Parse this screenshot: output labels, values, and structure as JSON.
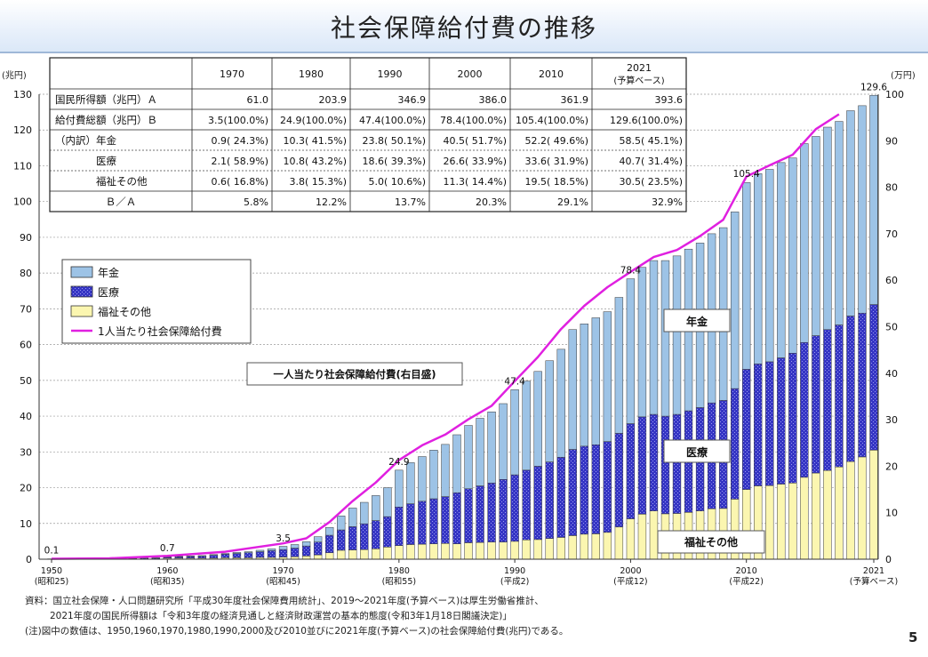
{
  "title": "社会保障給付費の推移",
  "page_number": "5",
  "left_axis_unit": "(兆円)",
  "right_axis_unit": "(万円)",
  "table": {
    "years": [
      "1970",
      "1980",
      "1990",
      "2000",
      "2010",
      "2021"
    ],
    "last_year_note": "(予算ベース)",
    "rows": [
      {
        "label": "国民所得額（兆円）Ａ",
        "values": [
          "61.0",
          "203.9",
          "346.9",
          "386.0",
          "361.9",
          "393.6"
        ]
      },
      {
        "label": "給付費総額（兆円）Ｂ",
        "values": [
          "3.5(100.0%)",
          "24.9(100.0%)",
          "47.4(100.0%)",
          "78.4(100.0%)",
          "105.4(100.0%)",
          "129.6(100.0%)"
        ]
      },
      {
        "label": "（内訳）年金",
        "values": [
          "0.9( 24.3%)",
          "10.3( 41.5%)",
          "23.8( 50.1%)",
          "40.5( 51.7%)",
          "52.2( 49.6%)",
          "58.5( 45.1%)"
        ]
      },
      {
        "label": "医療",
        "values": [
          "2.1( 58.9%)",
          "10.8( 43.2%)",
          "18.6( 39.3%)",
          "26.6( 33.9%)",
          "33.6( 31.9%)",
          "40.7( 31.4%)"
        ]
      },
      {
        "label": "福祉その他",
        "values": [
          "0.6( 16.8%)",
          "3.8( 15.3%)",
          "5.0( 10.6%)",
          "11.3( 14.4%)",
          "19.5( 18.5%)",
          "30.5( 23.5%)"
        ]
      },
      {
        "label": "Ｂ／Ａ",
        "values": [
          "5.8%",
          "12.2%",
          "13.7%",
          "20.3%",
          "29.1%",
          "32.9%"
        ]
      }
    ]
  },
  "legend": [
    "年金",
    "医療",
    "福祉その他",
    "1人当たり社会保障給付費"
  ],
  "annotations": {
    "callout": "一人当たり社会保障給付費(右目盛)",
    "pension": "年金",
    "medical": "医療",
    "welfare": "福祉その他"
  },
  "x_tick_labels": [
    {
      "year": 1950,
      "label": "1950",
      "sub": "(昭和25)"
    },
    {
      "year": 1960,
      "label": "1960",
      "sub": "(昭和35)"
    },
    {
      "year": 1970,
      "label": "1970",
      "sub": "(昭和45)"
    },
    {
      "year": 1980,
      "label": "1980",
      "sub": "(昭和55)"
    },
    {
      "year": 1990,
      "label": "1990",
      "sub": "(平成2)"
    },
    {
      "year": 2000,
      "label": "2000",
      "sub": "(平成12)"
    },
    {
      "year": 2010,
      "label": "2010",
      "sub": "(平成22)"
    },
    {
      "year": 2021,
      "label": "2021",
      "sub": "(予算ベース)"
    }
  ],
  "notes": [
    "資料：国立社会保障・人口問題研究所「平成30年度社会保障費用統計」、2019～2021年度(予算ベース)は厚生労働省推計、",
    "2021年度の国民所得額は「令和3年度の経済見通しと経済財政運営の基本的態度(令和3年1月18日閣議決定)」",
    "(注)図中の数値は、1950,1960,1970,1980,1990,2000及び2010並びに2021年度(予算ベース)の社会保障給付費(兆円)である。"
  ],
  "chart_data": {
    "type": "bar",
    "stacked": true,
    "x": [
      1950,
      1951,
      1952,
      1953,
      1954,
      1955,
      1956,
      1957,
      1958,
      1959,
      1960,
      1961,
      1962,
      1963,
      1964,
      1965,
      1966,
      1967,
      1968,
      1969,
      1970,
      1971,
      1972,
      1973,
      1974,
      1975,
      1976,
      1977,
      1978,
      1979,
      1980,
      1981,
      1982,
      1983,
      1984,
      1985,
      1986,
      1987,
      1988,
      1989,
      1990,
      1991,
      1992,
      1993,
      1994,
      1995,
      1996,
      1997,
      1998,
      1999,
      2000,
      2001,
      2002,
      2003,
      2004,
      2005,
      2006,
      2007,
      2008,
      2009,
      2010,
      2011,
      2012,
      2013,
      2014,
      2015,
      2016,
      2017,
      2018,
      2019,
      2020,
      2021
    ],
    "y_left": {
      "unit": "兆円",
      "range": [
        0,
        130
      ],
      "ticks": [
        0,
        10,
        20,
        30,
        40,
        50,
        60,
        70,
        80,
        90,
        100,
        110,
        120,
        130
      ]
    },
    "y_right": {
      "unit": "万円",
      "range": [
        0,
        100
      ],
      "ticks": [
        0,
        10,
        20,
        30,
        40,
        50,
        60,
        70,
        80,
        90,
        100
      ]
    },
    "series": [
      {
        "name": "年金",
        "color": "#9dc3e6",
        "values": [
          0.0,
          0.0,
          0.0,
          0.0,
          0.0,
          0.0,
          0.0,
          0.1,
          0.1,
          0.1,
          0.1,
          0.1,
          0.1,
          0.1,
          0.2,
          0.2,
          0.3,
          0.3,
          0.4,
          0.5,
          0.9,
          1.0,
          1.2,
          1.5,
          2.2,
          3.9,
          5.2,
          6.0,
          7.0,
          8.1,
          10.3,
          11.5,
          12.5,
          13.6,
          14.6,
          16.2,
          17.7,
          18.9,
          19.9,
          21.2,
          23.8,
          24.9,
          26.5,
          28.3,
          30.2,
          33.5,
          34.2,
          35.5,
          36.3,
          38.0,
          40.5,
          41.8,
          43.0,
          43.5,
          44.3,
          45.2,
          46.0,
          47.3,
          48.3,
          49.4,
          52.2,
          53.2,
          53.8,
          54.6,
          54.6,
          55.6,
          55.7,
          56.6,
          56.9,
          57.4,
          58.0,
          58.5
        ]
      },
      {
        "name": "医療",
        "color": "#3b3bc8",
        "values": [
          0.1,
          0.1,
          0.1,
          0.1,
          0.2,
          0.2,
          0.2,
          0.2,
          0.3,
          0.3,
          0.3,
          0.4,
          0.5,
          0.6,
          0.8,
          1.0,
          1.2,
          1.4,
          1.6,
          1.9,
          2.1,
          2.4,
          2.8,
          3.6,
          4.9,
          5.7,
          6.5,
          7.2,
          7.9,
          8.5,
          10.8,
          11.4,
          12.0,
          12.6,
          13.1,
          14.3,
          15.1,
          15.8,
          16.5,
          17.5,
          18.6,
          19.5,
          20.5,
          21.4,
          22.4,
          24.1,
          24.6,
          24.9,
          25.4,
          26.2,
          26.6,
          27.2,
          27.0,
          27.3,
          27.7,
          28.4,
          28.9,
          29.6,
          30.2,
          30.9,
          33.6,
          34.1,
          34.6,
          35.3,
          36.3,
          37.7,
          38.4,
          39.4,
          39.7,
          40.7,
          40.2,
          40.7
        ]
      },
      {
        "name": "福祉その他",
        "color": "#fbf6b0",
        "values": [
          0.0,
          0.0,
          0.0,
          0.0,
          0.0,
          0.0,
          0.0,
          0.0,
          0.0,
          0.0,
          0.3,
          0.3,
          0.3,
          0.3,
          0.3,
          0.4,
          0.4,
          0.4,
          0.5,
          0.5,
          0.6,
          0.7,
          0.9,
          1.2,
          1.8,
          2.5,
          2.6,
          2.7,
          2.9,
          3.4,
          3.8,
          4.1,
          4.2,
          4.3,
          4.4,
          4.3,
          4.6,
          4.7,
          4.8,
          4.8,
          5.0,
          5.4,
          5.5,
          5.8,
          6.1,
          6.6,
          7.0,
          7.1,
          7.5,
          9.0,
          11.3,
          12.6,
          13.5,
          12.7,
          12.8,
          13.1,
          13.5,
          14.1,
          14.2,
          16.8,
          19.5,
          20.5,
          20.6,
          21.0,
          21.3,
          22.9,
          24.1,
          24.8,
          25.8,
          27.3,
          28.6,
          30.5
        ]
      }
    ],
    "totals_labeled": [
      {
        "year": 1950,
        "value": 0.1
      },
      {
        "year": 1960,
        "value": 0.7
      },
      {
        "year": 1970,
        "value": 3.5
      },
      {
        "year": 1980,
        "value": 24.9
      },
      {
        "year": 1990,
        "value": 47.4
      },
      {
        "year": 2000,
        "value": 78.4
      },
      {
        "year": 2010,
        "value": 105.4
      },
      {
        "year": 2021,
        "value": 129.6
      }
    ],
    "line": {
      "name": "1人当たり社会保障給付費",
      "axis": "right",
      "color": "#e020e0",
      "x": [
        1950,
        1955,
        1960,
        1965,
        1970,
        1972,
        1974,
        1976,
        1978,
        1980,
        1982,
        1984,
        1986,
        1988,
        1990,
        1992,
        1994,
        1996,
        1998,
        2000,
        2002,
        2004,
        2006,
        2008,
        2010,
        2012,
        2014,
        2016,
        2018
      ],
      "values": [
        0.1,
        0.2,
        0.7,
        1.6,
        3.4,
        4.5,
        8.0,
        12.5,
        16.5,
        21.3,
        24.5,
        26.8,
        30.1,
        33.0,
        38.3,
        43.5,
        49.5,
        54.5,
        58.5,
        61.8,
        65.0,
        66.5,
        69.5,
        73.0,
        82.3,
        84.7,
        87.0,
        92.5,
        95.7
      ]
    }
  }
}
